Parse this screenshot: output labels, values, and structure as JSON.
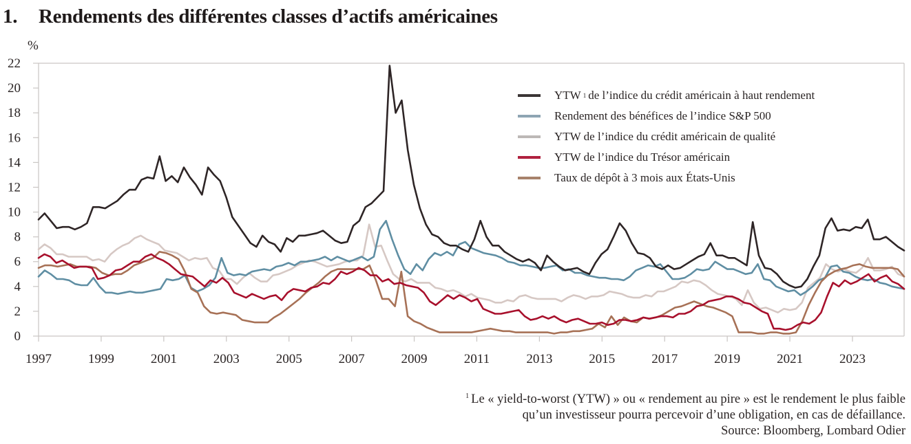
{
  "title": {
    "number": "1.",
    "text": "Rendements des différentes classes d’actifs américaines"
  },
  "footnote": {
    "marker": "1",
    "line1": "Le « yield-to-worst (YTW) » ou « rendement au pire » est le rendement le plus faible",
    "line2": "qu’un investisseur pourra percevoir d’une obligation, en cas de défaillance.",
    "source": "Source: Bloomberg, Lombard Odier"
  },
  "chart_data": {
    "type": "line",
    "title": "Rendements des différentes classes d’actifs américaines",
    "xlabel": "",
    "ylabel": "%",
    "xlim": [
      1997.0,
      2024.65
    ],
    "ylim": [
      0,
      22
    ],
    "x_ticks": [
      "1997",
      "1999",
      "2001",
      "2003",
      "2005",
      "2007",
      "2009",
      "2011",
      "2013",
      "2015",
      "2017",
      "2019",
      "2021",
      "2023"
    ],
    "y_ticks": [
      "0",
      "2",
      "4",
      "6",
      "8",
      "10",
      "12",
      "14",
      "16",
      "18",
      "20",
      "22"
    ],
    "grid": false,
    "legend_position": "top-right",
    "x_step_years": 0.25,
    "x_start": 1997.0,
    "series": [
      {
        "name": "YTW de l’indice du crédit américain à haut rendement",
        "legend_prefix": "YTW",
        "legend_sup": "1",
        "legend_suffix": "de l’indice du crédit américain à haut rendement",
        "color": "#2e2526",
        "values": [
          9.4,
          9.9,
          9.3,
          8.7,
          8.8,
          8.8,
          8.6,
          8.8,
          9.1,
          10.4,
          10.4,
          10.3,
          10.6,
          10.9,
          11.4,
          11.8,
          11.8,
          12.6,
          12.8,
          12.7,
          14.5,
          12.5,
          12.9,
          12.4,
          13.6,
          12.8,
          12.2,
          11.4,
          13.6,
          13.0,
          12.5,
          11.2,
          9.6,
          8.9,
          8.2,
          7.5,
          7.2,
          8.1,
          7.6,
          7.4,
          6.8,
          7.9,
          7.6,
          8.1,
          8.1,
          8.2,
          8.3,
          8.5,
          8.1,
          7.7,
          7.5,
          7.6,
          8.9,
          9.3,
          10.4,
          10.7,
          11.2,
          11.7,
          21.8,
          18.0,
          19.0,
          15.0,
          12.2,
          10.3,
          9.0,
          8.2,
          8.0,
          7.5,
          7.3,
          7.3,
          7.0,
          6.8,
          7.8,
          9.3,
          8.0,
          7.3,
          7.3,
          6.8,
          6.5,
          6.2,
          6.0,
          6.2,
          5.9,
          5.3,
          6.5,
          6.0,
          5.6,
          5.3,
          5.4,
          5.5,
          5.2,
          5.0,
          5.9,
          6.6,
          7.0,
          8.0,
          9.1,
          8.5,
          7.5,
          6.7,
          6.6,
          6.3,
          5.6,
          5.4,
          5.7,
          5.4,
          5.5,
          5.8,
          6.1,
          6.4,
          6.6,
          7.5,
          6.5,
          6.5,
          6.3,
          6.3,
          6.0,
          5.7,
          9.2,
          6.5,
          5.5,
          5.4,
          5.0,
          4.4,
          4.1,
          3.9,
          4.0,
          4.6,
          5.6,
          6.5,
          8.7,
          9.5,
          8.5,
          8.6,
          8.5,
          8.8,
          8.7,
          9.4,
          7.8,
          7.8,
          8.0,
          7.6,
          7.2,
          6.9
        ]
      },
      {
        "name": "Rendement des bénéfices de l’indice S&P 500",
        "color": "#5f8ea3",
        "values": [
          4.8,
          5.3,
          5.0,
          4.6,
          4.6,
          4.5,
          4.2,
          4.1,
          4.1,
          4.7,
          4.0,
          3.5,
          3.5,
          3.4,
          3.5,
          3.6,
          3.5,
          3.5,
          3.6,
          3.7,
          3.8,
          4.6,
          4.5,
          4.6,
          4.9,
          3.9,
          3.6,
          3.8,
          4.1,
          4.7,
          6.3,
          5.1,
          4.9,
          5.0,
          4.9,
          5.2,
          5.3,
          5.4,
          5.3,
          5.6,
          5.7,
          5.9,
          5.7,
          6.0,
          6.0,
          6.1,
          6.2,
          6.4,
          6.1,
          6.4,
          6.2,
          6.0,
          6.2,
          6.4,
          6.1,
          6.4,
          8.6,
          9.3,
          7.8,
          6.5,
          5.4,
          5.0,
          5.8,
          5.3,
          6.2,
          6.7,
          6.5,
          6.8,
          6.5,
          7.4,
          7.6,
          7.1,
          6.9,
          6.7,
          6.6,
          6.5,
          6.3,
          6.0,
          5.9,
          5.7,
          5.7,
          5.6,
          5.5,
          5.5,
          5.6,
          5.7,
          5.3,
          5.4,
          5.1,
          5.1,
          4.9,
          4.8,
          4.7,
          4.7,
          4.6,
          4.6,
          4.5,
          4.8,
          5.3,
          5.5,
          5.7,
          5.6,
          5.8,
          5.2,
          4.6,
          4.6,
          4.7,
          5.0,
          5.4,
          5.3,
          5.4,
          6.0,
          5.7,
          5.4,
          5.4,
          5.2,
          5.0,
          5.1,
          5.8,
          4.6,
          4.5,
          4.0,
          3.8,
          3.6,
          3.7,
          3.3,
          3.6,
          4.0,
          4.5,
          4.7,
          5.6,
          5.7,
          5.2,
          5.1,
          4.8,
          4.6,
          4.5,
          4.6,
          4.3,
          4.2,
          4.0,
          3.9,
          3.8
        ]
      },
      {
        "name": "YTW de l’indice du crédit américain de qualité",
        "color": "#d6c8c4",
        "values": [
          7.0,
          7.4,
          7.1,
          6.6,
          6.6,
          6.4,
          6.4,
          6.4,
          6.4,
          6.1,
          6.2,
          6.0,
          6.6,
          7.0,
          7.3,
          7.5,
          7.9,
          8.1,
          7.8,
          7.6,
          7.4,
          6.9,
          6.8,
          6.7,
          6.4,
          6.1,
          6.3,
          6.2,
          6.3,
          5.5,
          5.3,
          4.6,
          4.6,
          4.2,
          4.7,
          5.1,
          4.7,
          4.4,
          4.4,
          4.9,
          5.0,
          5.2,
          5.4,
          5.7,
          5.9,
          6.1,
          6.0,
          5.8,
          5.6,
          5.7,
          5.8,
          6.0,
          6.1,
          6.1,
          6.5,
          9.0,
          7.2,
          7.3,
          6.1,
          5.0,
          4.6,
          4.4,
          4.6,
          4.3,
          4.3,
          4.3,
          3.9,
          3.8,
          3.6,
          3.7,
          3.5,
          3.2,
          3.4,
          3.1,
          3.0,
          2.9,
          2.7,
          2.7,
          2.9,
          2.8,
          3.2,
          3.3,
          3.1,
          3.0,
          3.0,
          3.0,
          3.0,
          2.8,
          3.1,
          3.3,
          3.2,
          3.0,
          3.2,
          3.2,
          3.3,
          3.6,
          3.5,
          3.4,
          3.2,
          3.1,
          3.1,
          3.3,
          3.2,
          3.6,
          3.6,
          3.8,
          4.0,
          4.4,
          4.3,
          4.5,
          4.4,
          4.1,
          3.7,
          3.4,
          3.3,
          3.2,
          3.0,
          2.5,
          3.7,
          2.7,
          2.2,
          2.3,
          2.1,
          1.9,
          2.2,
          2.1,
          2.2,
          2.7,
          3.9,
          4.3,
          4.7,
          5.8,
          5.4,
          5.2,
          5.4,
          5.2,
          5.1,
          5.5,
          6.3,
          5.3,
          5.3,
          5.4,
          5.6,
          5.0,
          4.8
        ]
      },
      {
        "name": "YTW de l’indice du Trésor américain",
        "color": "#a8102c",
        "values": [
          6.3,
          6.6,
          6.4,
          5.9,
          6.1,
          5.8,
          5.5,
          5.6,
          5.6,
          5.5,
          4.6,
          4.7,
          4.9,
          5.3,
          5.4,
          5.7,
          6.0,
          6.0,
          6.4,
          6.6,
          6.3,
          6.1,
          5.8,
          5.4,
          5.0,
          4.9,
          4.8,
          4.4,
          4.0,
          4.5,
          4.3,
          4.7,
          4.3,
          3.5,
          3.3,
          3.1,
          3.4,
          3.2,
          3.0,
          3.2,
          3.3,
          2.9,
          3.5,
          3.8,
          3.7,
          3.6,
          3.9,
          4.0,
          4.3,
          4.2,
          4.6,
          5.2,
          5.0,
          5.2,
          5.5,
          5.3,
          4.9,
          4.9,
          4.4,
          4.6,
          4.2,
          4.3,
          4.1,
          4.0,
          3.9,
          3.5,
          2.8,
          2.5,
          2.9,
          3.3,
          3.0,
          3.3,
          3.1,
          2.8,
          3.0,
          2.2,
          2.0,
          1.8,
          1.8,
          1.9,
          2.0,
          2.1,
          1.6,
          1.3,
          1.4,
          1.6,
          1.4,
          1.6,
          1.3,
          1.1,
          1.3,
          1.4,
          1.2,
          1.0,
          1.0,
          1.1,
          0.9,
          1.0,
          1.3,
          1.3,
          1.2,
          1.3,
          1.5,
          1.4,
          1.5,
          1.6,
          1.6,
          1.5,
          1.8,
          1.8,
          2.0,
          2.4,
          2.5,
          2.8,
          2.9,
          3.0,
          3.2,
          3.2,
          3.0,
          2.7,
          2.6,
          2.3,
          2.0,
          1.8,
          0.6,
          0.6,
          0.5,
          0.6,
          0.9,
          1.1,
          1.0,
          1.3,
          1.9,
          3.2,
          4.3,
          4.0,
          4.5,
          4.2,
          4.4,
          4.7,
          5.0,
          4.4,
          4.7,
          4.9,
          4.4,
          4.2,
          3.8
        ]
      },
      {
        "name": "Taux de dépôt à 3 mois aux États-Unis",
        "color": "#a77156",
        "values": [
          5.5,
          5.7,
          5.7,
          5.6,
          5.7,
          5.8,
          5.6,
          5.6,
          5.6,
          5.5,
          5.1,
          4.9,
          5.0,
          5.0,
          5.3,
          5.7,
          5.9,
          6.1,
          6.3,
          6.8,
          6.7,
          6.5,
          6.2,
          5.2,
          3.8,
          3.5,
          2.4,
          1.9,
          1.8,
          1.9,
          1.8,
          1.7,
          1.3,
          1.2,
          1.1,
          1.1,
          1.1,
          1.5,
          1.8,
          2.2,
          2.6,
          3.0,
          3.5,
          3.9,
          4.3,
          4.8,
          5.2,
          5.4,
          5.4,
          5.4,
          5.4,
          5.4,
          5.7,
          4.5,
          3.0,
          3.0,
          2.4,
          5.2,
          1.6,
          1.2,
          1.0,
          0.7,
          0.5,
          0.3,
          0.3,
          0.3,
          0.3,
          0.3,
          0.3,
          0.4,
          0.5,
          0.6,
          0.5,
          0.4,
          0.4,
          0.3,
          0.3,
          0.3,
          0.3,
          0.3,
          0.3,
          0.2,
          0.3,
          0.3,
          0.4,
          0.4,
          0.5,
          0.6,
          1.0,
          0.7,
          1.6,
          0.9,
          1.5,
          1.2,
          1.1,
          1.5,
          1.4,
          1.5,
          1.7,
          2.0,
          2.3,
          2.4,
          2.6,
          2.8,
          2.6,
          2.4,
          2.3,
          2.1,
          1.9,
          1.6,
          0.3,
          0.3,
          0.3,
          0.2,
          0.2,
          0.3,
          0.3,
          0.2,
          0.2,
          0.3,
          1.2,
          2.5,
          3.5,
          4.4,
          4.9,
          5.2,
          5.4,
          5.5,
          5.7,
          5.8,
          5.6,
          5.5,
          5.5,
          5.5,
          5.5,
          5.4,
          4.8
        ]
      }
    ]
  }
}
